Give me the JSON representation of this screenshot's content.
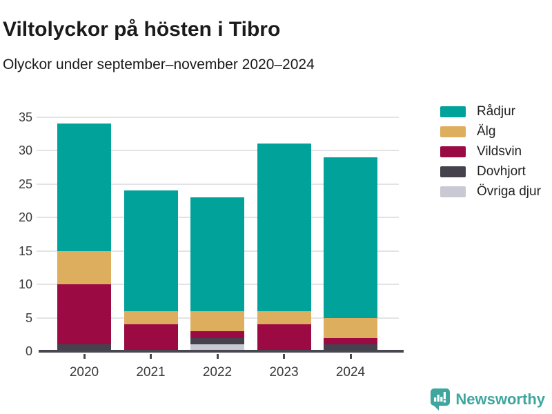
{
  "chart_data": {
    "type": "bar",
    "stacked": true,
    "title": "Viltolyckor på hösten i Tibro",
    "subtitle": "Olyckor under september–november 2020–2024",
    "categories": [
      "2020",
      "2021",
      "2022",
      "2023",
      "2024"
    ],
    "series": [
      {
        "name": "Rådjur",
        "color": "#00A29A",
        "values": [
          19,
          18,
          17,
          25,
          24
        ]
      },
      {
        "name": "Älg",
        "color": "#DCAE5E",
        "values": [
          5,
          2,
          3,
          2,
          3
        ]
      },
      {
        "name": "Vildsvin",
        "color": "#9B0A42",
        "values": [
          9,
          4,
          1,
          4,
          1
        ]
      },
      {
        "name": "Dovhjort",
        "color": "#45424E",
        "values": [
          1,
          0,
          1,
          0,
          1
        ]
      },
      {
        "name": "Övriga djur",
        "color": "#C9C9D3",
        "values": [
          0,
          0,
          1,
          0,
          0
        ]
      }
    ],
    "totals": [
      34,
      24,
      23,
      31,
      29
    ],
    "yticks": [
      0,
      5,
      10,
      15,
      20,
      25,
      30,
      35
    ],
    "ylim": [
      0,
      35
    ],
    "grid": true,
    "legend_position": "top-right"
  },
  "branding": {
    "logo_text": "Newsworthy",
    "color": "#3EA69E"
  }
}
